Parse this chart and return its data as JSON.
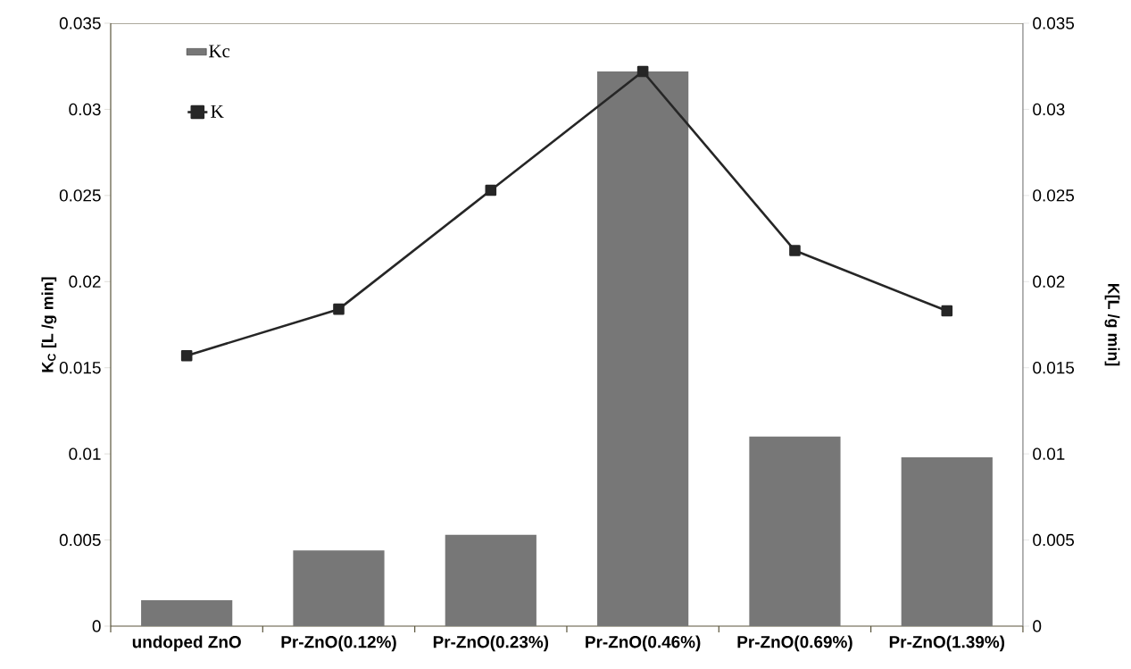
{
  "chart_data": {
    "type": "bar",
    "ylabel": "K$_{C}$ [L /g min]",
    "y2label": "K[L /g min]",
    "categories": [
      "undoped ZnO",
      "Pr-ZnO(0.12%)",
      "Pr-ZnO(0.23%)",
      "Pr-ZnO(0.46%)",
      "Pr-ZnO(0.69%)",
      "Pr-ZnO(1.39%)"
    ],
    "series": [
      {
        "name": "Kc",
        "color": "#777777",
        "values": [
          0.0015,
          0.0044,
          0.0053,
          0.0322,
          0.011,
          0.0098
        ]
      },
      {
        "name": "K",
        "type": "line",
        "axis": "y2",
        "color": "#262626",
        "marker": "square",
        "line_style": "solid",
        "values": [
          0.0157,
          0.0184,
          0.0253,
          0.0322,
          0.0218,
          0.0183
        ]
      }
    ],
    "ylim": [
      0,
      0.035
    ],
    "yticks": [
      0,
      0.005,
      0.01,
      0.015,
      0.02,
      0.025,
      0.03,
      0.035
    ],
    "y2lim": [
      0,
      0.035
    ],
    "y2ticks": [
      0,
      0.005,
      0.01,
      0.015,
      0.02,
      0.025,
      0.03,
      0.035
    ],
    "grid": false,
    "legend": "top left"
  }
}
